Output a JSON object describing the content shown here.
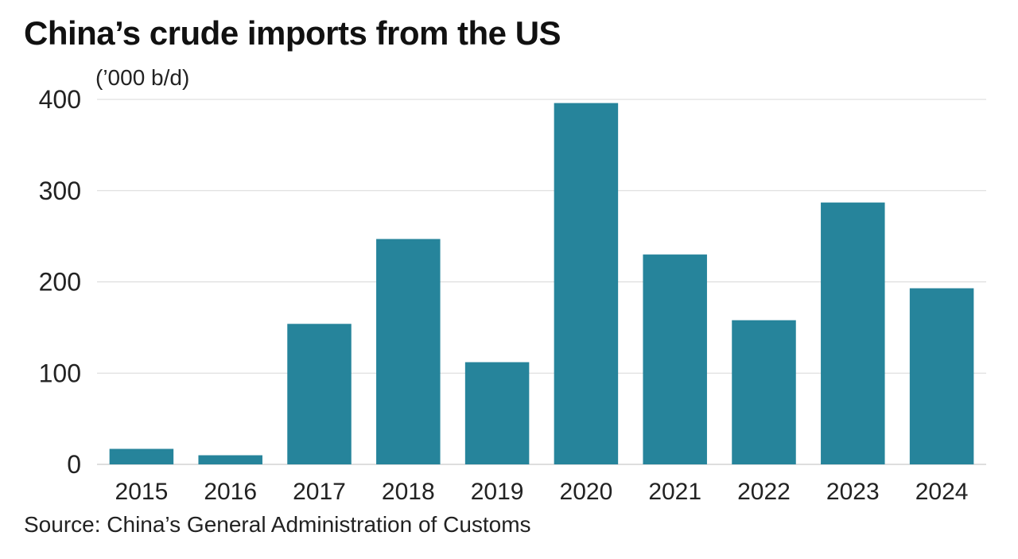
{
  "title": "China’s crude imports from the US",
  "unit": "(’000 b/d)",
  "source": "Source: China’s General Administration of Customs",
  "colors": {
    "bar": "#26849b",
    "grid": "#d8d8d8",
    "axis": "#bdbdbd"
  },
  "chart_data": {
    "type": "bar",
    "title": "China’s crude imports from the US",
    "ylabel": "(’000 b/d)",
    "xlabel": "",
    "categories": [
      "2015",
      "2016",
      "2017",
      "2018",
      "2019",
      "2020",
      "2021",
      "2022",
      "2023",
      "2024"
    ],
    "values": [
      17,
      10,
      154,
      247,
      112,
      396,
      230,
      158,
      287,
      193
    ],
    "ylim": [
      0,
      400
    ],
    "yticks": [
      0,
      100,
      200,
      300,
      400
    ],
    "grid": true,
    "legend": "none"
  }
}
